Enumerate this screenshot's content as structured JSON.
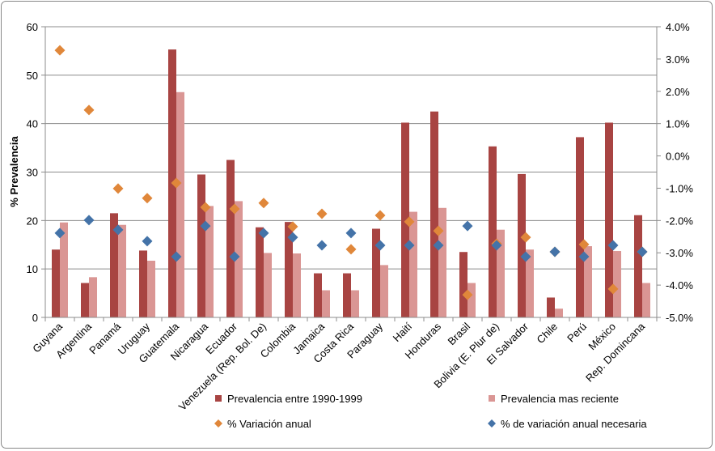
{
  "chart_data": {
    "type": "bar",
    "title": "",
    "ylabel": "% Prevalencia",
    "ylim": [
      0,
      60
    ],
    "yticks": [
      "0",
      "10",
      "20",
      "30",
      "40",
      "50",
      "60"
    ],
    "y2lim": [
      -5.0,
      4.0
    ],
    "y2ticks": [
      "-5.0%",
      "-4.0%",
      "-3.0%",
      "-2.0%",
      "-1.0%",
      "0.0%",
      "1.0%",
      "2.0%",
      "3.0%",
      "4.0%"
    ],
    "grid": true,
    "legend_position": "bottom",
    "categories": [
      "Guyana",
      "Argentina",
      "Panamá",
      "Uruguay",
      "Guatemala",
      "Nicaragua",
      "Ecuador",
      "Venezuela (Rep. Bol. De)",
      "Colombia",
      "Jamaica",
      "Costa Rica",
      "Paraguay",
      "Haití",
      "Honduras",
      "Brasil",
      "Bolivia (E. Plur de)",
      "El Salvador",
      "Chile",
      "Perú",
      "México",
      "Rep. Domincana"
    ],
    "series": [
      {
        "name": "Prevalencia entre 1990-1999",
        "type": "bar",
        "axis": "left",
        "color": "#A84442",
        "values": [
          14.0,
          7.1,
          21.5,
          13.8,
          55.3,
          29.5,
          32.5,
          18.6,
          19.7,
          9.1,
          9.1,
          18.3,
          40.2,
          42.5,
          13.5,
          35.3,
          29.6,
          4.1,
          37.2,
          40.2,
          21.1
        ]
      },
      {
        "name": "Prevalencia mas reciente",
        "type": "bar",
        "axis": "left",
        "color": "#DA9694",
        "values": [
          19.6,
          8.3,
          19.1,
          11.7,
          46.5,
          23.0,
          24.0,
          13.3,
          13.2,
          5.6,
          5.6,
          10.8,
          21.8,
          22.6,
          7.1,
          18.1,
          14.0,
          1.8,
          14.7,
          13.7,
          7.1
        ]
      },
      {
        "name": "% Variación anual",
        "type": "scatter",
        "axis": "right",
        "color": "#E0873A",
        "values": [
          3.27,
          1.42,
          -1.01,
          -1.31,
          -0.84,
          -1.59,
          -1.64,
          -1.46,
          -2.19,
          -1.79,
          -2.89,
          -1.84,
          -2.04,
          -2.32,
          -4.3,
          -2.72,
          -2.52,
          -2.97,
          -2.74,
          -4.12,
          -2.97
        ]
      },
      {
        "name": "% de variación anual necesaria",
        "type": "scatter",
        "axis": "right",
        "color": "#4473A8",
        "values": [
          -2.39,
          -1.99,
          -2.29,
          -2.64,
          -3.12,
          -2.17,
          -3.12,
          -2.39,
          -2.52,
          -2.77,
          -2.39,
          -2.77,
          -2.77,
          -2.77,
          -2.17,
          -2.77,
          -3.12,
          -2.97,
          -3.12,
          -2.77,
          -2.97
        ]
      }
    ]
  }
}
